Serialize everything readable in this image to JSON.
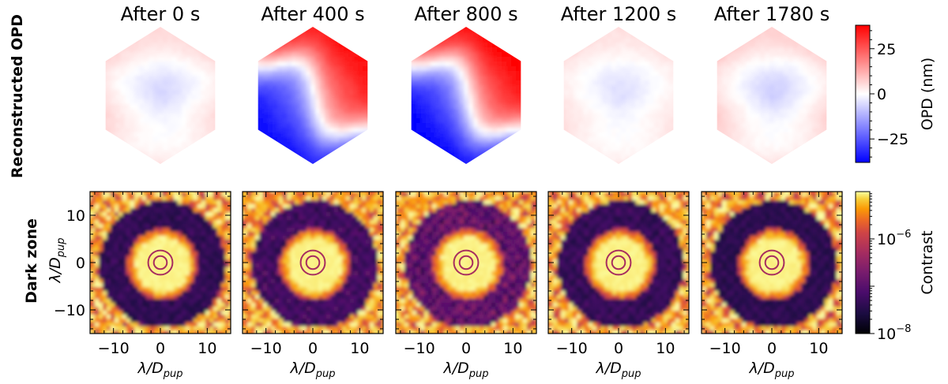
{
  "chart_data": [
    {
      "type": "heatmap",
      "row_label": "Reconstructed OPD",
      "panel_titles": [
        "After 0 s",
        "After 400 s",
        "After 800 s",
        "After 1200 s",
        "After 1780 s"
      ],
      "panel_amplitude": [
        0.25,
        0.95,
        1.0,
        0.2,
        0.3
      ],
      "colormap": "bwr",
      "colorbar": {
        "label": "OPD (nm)",
        "range": [
          -38,
          38
        ],
        "ticks": [
          25,
          0,
          -25
        ],
        "tick_labels": [
          "25",
          "0",
          "−25"
        ]
      },
      "colors": {
        "positive": "#ff0000",
        "zero": "#ffffff",
        "negative": "#0000ff"
      }
    },
    {
      "type": "heatmap",
      "row_label": "Dark zone",
      "panel_amplitude": [
        0.4,
        0.6,
        0.95,
        0.45,
        0.35
      ],
      "colormap": "inferno",
      "xlabel": "λ/D",
      "xlabel_sub": "pup",
      "ylabel": "λ/D",
      "ylabel_sub": "pup",
      "xlim": [
        -15,
        15
      ],
      "ylim": [
        -15,
        15
      ],
      "x_ticks": [
        -10,
        0,
        10
      ],
      "x_tick_labels": [
        "−10",
        "0",
        "10"
      ],
      "y_ticks": [
        10,
        0,
        -10
      ],
      "y_tick_labels": [
        "10",
        "0",
        "−10"
      ],
      "colorbar": {
        "label": "Contrast",
        "scale": "log",
        "range_exp": [
          -8,
          -5
        ],
        "ticks_exp": [
          -6,
          -8
        ],
        "tick_labels": [
          {
            "base": "10",
            "exp": "−6"
          },
          {
            "base": "10",
            "exp": "−8"
          }
        ]
      }
    }
  ]
}
